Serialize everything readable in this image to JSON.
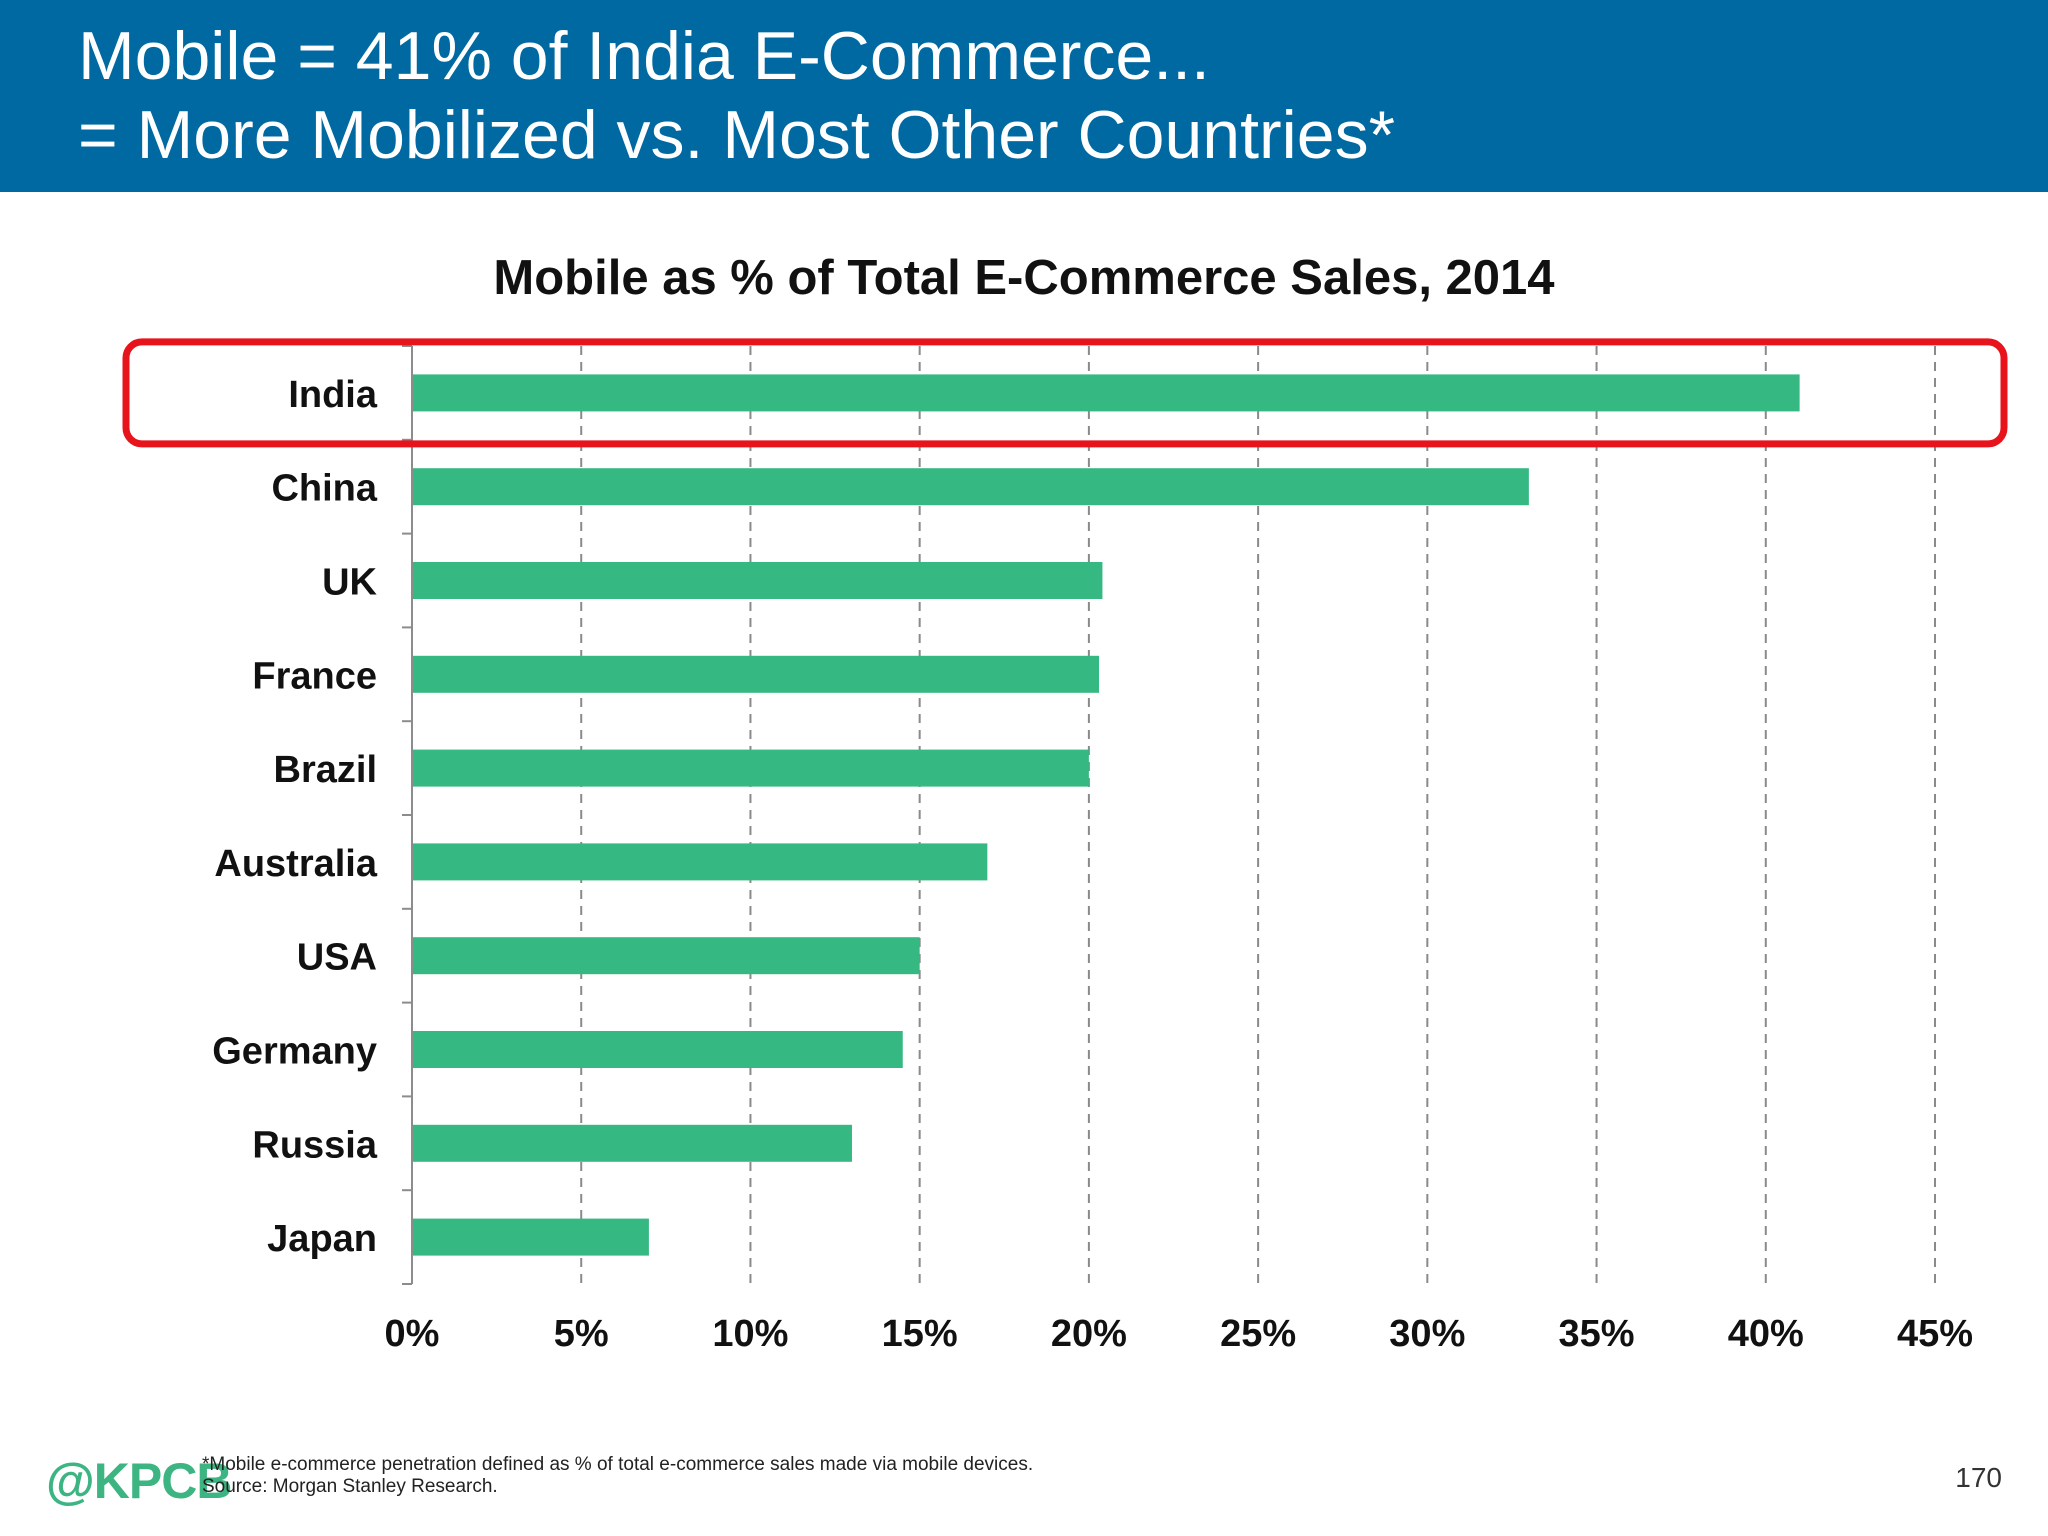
{
  "header": {
    "line1": "Mobile = 41% of India E-Commerce...",
    "line2": "= More Mobilized vs. Most Other Countries*",
    "background": "#0069A1"
  },
  "chart_data": {
    "type": "bar",
    "orientation": "horizontal",
    "title": "Mobile as % of Total E-Commerce Sales, 2014",
    "categories": [
      "India",
      "China",
      "UK",
      "France",
      "Brazil",
      "Australia",
      "USA",
      "Germany",
      "Russia",
      "Japan"
    ],
    "values": [
      41,
      33,
      20.4,
      20.3,
      20,
      17,
      15,
      14.5,
      13,
      7
    ],
    "xlim": [
      0,
      45
    ],
    "x_ticks": [
      "0%",
      "5%",
      "10%",
      "15%",
      "20%",
      "25%",
      "30%",
      "35%",
      "40%",
      "45%"
    ],
    "xlabel": "",
    "ylabel": "",
    "grid": "vertical dashed",
    "bar_color": "#36B882",
    "highlight": {
      "category": "India",
      "color": "#E8141B"
    }
  },
  "footer": {
    "logo": "@KPCB",
    "footnote_line1": "*Mobile e-commerce penetration defined as % of total e-commerce sales made via mobile devices.",
    "footnote_line2": "Source: Morgan Stanley Research.",
    "page_number": "170"
  }
}
